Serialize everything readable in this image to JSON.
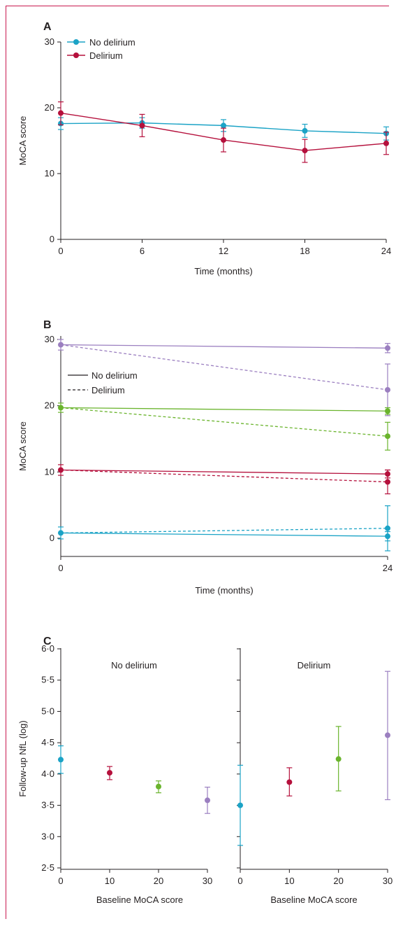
{
  "chart_data": [
    {
      "panel": "A",
      "type": "line",
      "xlabel": "Time (months)",
      "ylabel": "MoCA score",
      "xlim": [
        0,
        24
      ],
      "ylim": [
        0,
        30
      ],
      "xticks": [
        "0",
        "6",
        "12",
        "18",
        "24"
      ],
      "yticks": [
        "0",
        "10",
        "20",
        "30"
      ],
      "x": [
        0,
        6,
        12,
        18,
        24
      ],
      "legend_position": "top-left",
      "series": [
        {
          "name": "No delirium",
          "color": "#1ba3c6",
          "values": [
            17.6,
            17.7,
            17.3,
            16.5,
            16.1
          ],
          "err_low": [
            16.7,
            16.9,
            16.4,
            15.5,
            15.1
          ],
          "err_high": [
            18.5,
            18.5,
            18.2,
            17.5,
            17.1
          ]
        },
        {
          "name": "Delirium",
          "color": "#b5103c",
          "values": [
            19.2,
            17.3,
            15.1,
            13.5,
            14.6
          ],
          "err_low": [
            17.4,
            15.6,
            13.3,
            11.7,
            12.9
          ],
          "err_high": [
            20.9,
            19.0,
            16.9,
            15.2,
            16.3
          ]
        }
      ]
    },
    {
      "panel": "B",
      "type": "line",
      "xlabel": "Time (months)",
      "ylabel": "MoCA score",
      "xlim": [
        0,
        24
      ],
      "ylim": [
        -3,
        30
      ],
      "xticks": [
        "0",
        "24"
      ],
      "yticks": [
        "0",
        "10",
        "20",
        "30"
      ],
      "x": [
        0,
        24
      ],
      "legend_position": "top-left",
      "legend": [
        {
          "label": "No delirium",
          "style": "solid"
        },
        {
          "label": "Delirium",
          "style": "dashed"
        }
      ],
      "series": [
        {
          "color": "#9b7fc0",
          "style": "solid",
          "values": [
            29.2,
            28.7
          ],
          "err_low": [
            28.4,
            28.0
          ],
          "err_high": [
            30.0,
            29.4
          ]
        },
        {
          "color": "#9b7fc0",
          "style": "dashed",
          "values": [
            29.2,
            22.4
          ],
          "err_low": [
            28.4,
            18.5
          ],
          "err_high": [
            30.0,
            26.3
          ]
        },
        {
          "color": "#6ab42d",
          "style": "solid",
          "values": [
            19.7,
            19.2
          ],
          "err_low": [
            19.0,
            18.7
          ],
          "err_high": [
            20.4,
            19.7
          ]
        },
        {
          "color": "#6ab42d",
          "style": "dashed",
          "values": [
            19.7,
            15.4
          ],
          "err_low": [
            19.0,
            13.3
          ],
          "err_high": [
            20.4,
            17.5
          ]
        },
        {
          "color": "#b5103c",
          "style": "solid",
          "values": [
            10.3,
            9.7
          ],
          "err_low": [
            9.5,
            9.1
          ],
          "err_high": [
            11.1,
            10.3
          ]
        },
        {
          "color": "#b5103c",
          "style": "dashed",
          "values": [
            10.3,
            8.5
          ],
          "err_low": [
            9.5,
            6.7
          ],
          "err_high": [
            11.1,
            10.3
          ]
        },
        {
          "color": "#1ba3c6",
          "style": "solid",
          "values": [
            0.8,
            0.3
          ],
          "err_low": [
            -0.1,
            -0.4
          ],
          "err_high": [
            1.7,
            1.0
          ]
        },
        {
          "color": "#1ba3c6",
          "style": "dashed",
          "values": [
            0.8,
            1.5
          ],
          "err_low": [
            -0.1,
            -1.9
          ],
          "err_high": [
            1.7,
            4.9
          ]
        }
      ]
    },
    {
      "panel": "C",
      "type": "scatter",
      "ylabel": "Follow-up NfL (log)",
      "ylim": [
        2.5,
        6.0
      ],
      "yticks": [
        "2·5",
        "3·0",
        "3·5",
        "4·0",
        "4·5",
        "5·0",
        "5·5",
        "6·0"
      ],
      "subplots": [
        {
          "subtitle": "No delirium",
          "xlabel": "Baseline MoCA score",
          "xlim": [
            0,
            30
          ],
          "xticks": [
            "0",
            "10",
            "20",
            "30"
          ],
          "points": [
            {
              "x": 0,
              "y": 4.23,
              "lo": 4.01,
              "hi": 4.45,
              "color": "#1ba3c6"
            },
            {
              "x": 10,
              "y": 4.02,
              "lo": 3.91,
              "hi": 4.12,
              "color": "#b5103c"
            },
            {
              "x": 20,
              "y": 3.8,
              "lo": 3.7,
              "hi": 3.89,
              "color": "#6ab42d"
            },
            {
              "x": 30,
              "y": 3.58,
              "lo": 3.37,
              "hi": 3.79,
              "color": "#9b7fc0"
            }
          ]
        },
        {
          "subtitle": "Delirium",
          "xlabel": "Baseline MoCA score",
          "xlim": [
            0,
            30
          ],
          "xticks": [
            "0",
            "10",
            "20",
            "30"
          ],
          "points": [
            {
              "x": 0,
              "y": 3.5,
              "lo": 2.86,
              "hi": 4.14,
              "color": "#1ba3c6"
            },
            {
              "x": 10,
              "y": 3.87,
              "lo": 3.65,
              "hi": 4.1,
              "color": "#b5103c"
            },
            {
              "x": 20,
              "y": 4.24,
              "lo": 3.73,
              "hi": 4.76,
              "color": "#6ab42d"
            },
            {
              "x": 30,
              "y": 4.62,
              "lo": 3.59,
              "hi": 5.64,
              "color": "#9b7fc0"
            }
          ]
        }
      ]
    }
  ],
  "colors": {
    "frame": "#c8194f",
    "axis": "#231f20"
  }
}
